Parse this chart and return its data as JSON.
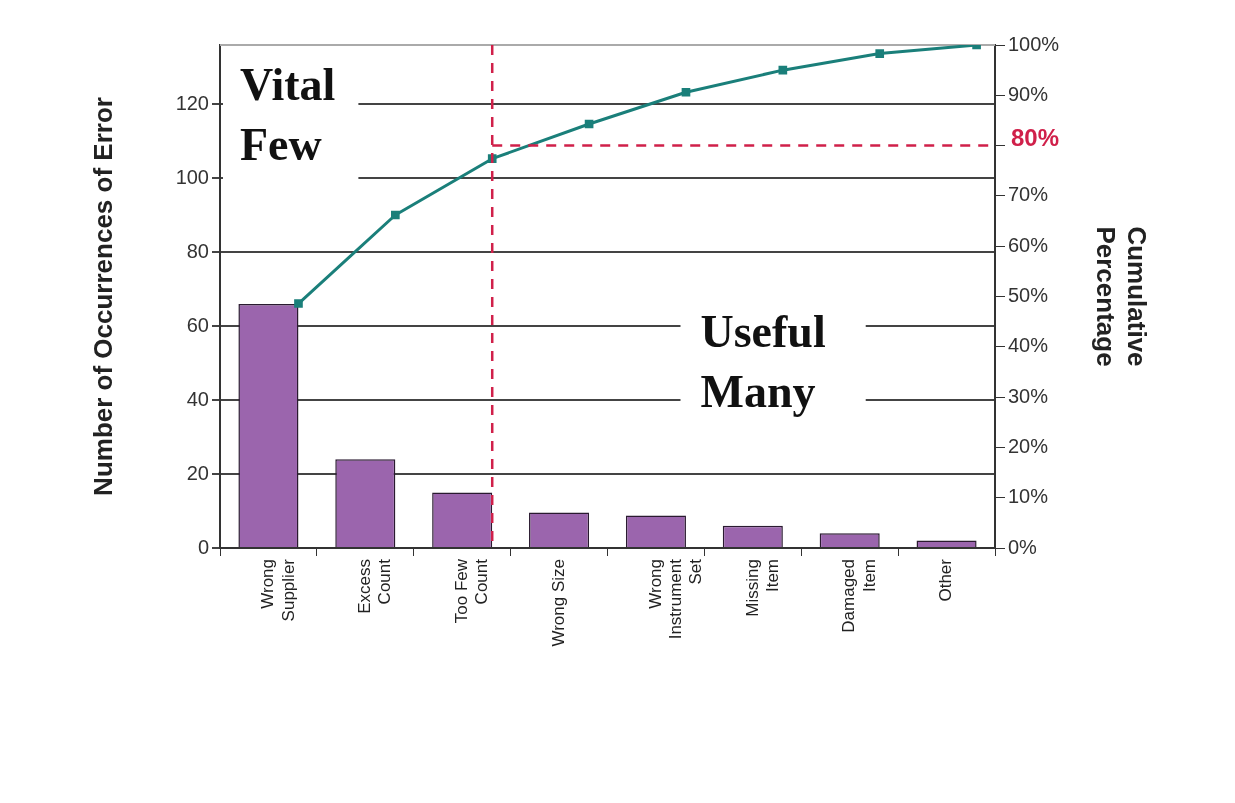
{
  "chart_data": {
    "type": "bar",
    "categories": [
      "Wrong Supplier",
      "Excess Count",
      "Too Few Count",
      "Wrong Size",
      "Wrong Instrument Set",
      "Missing Item",
      "Damaged Item",
      "Other"
    ],
    "ylabel": "Number of Occurrences of Error",
    "y2label": "Cumulative Percentage",
    "ylim": [
      0,
      136
    ],
    "yticks": [
      0,
      20,
      40,
      60,
      80,
      100,
      120
    ],
    "y2lim": [
      0,
      100
    ],
    "y2ticks": [
      {
        "value": 0,
        "label": "0%"
      },
      {
        "value": 10,
        "label": "10%"
      },
      {
        "value": 20,
        "label": "20%"
      },
      {
        "value": 30,
        "label": "30%"
      },
      {
        "value": 40,
        "label": "40%"
      },
      {
        "value": 50,
        "label": "50%"
      },
      {
        "value": 60,
        "label": "60%"
      },
      {
        "value": 70,
        "label": "70%"
      },
      {
        "value": 80,
        "label": null
      },
      {
        "value": 90,
        "label": "90%"
      },
      {
        "value": 100,
        "label": "100%"
      }
    ],
    "series": [
      {
        "color": "#9b65ad",
        "values": [
          66,
          24,
          15,
          9.6,
          8.8,
          6,
          4,
          2
        ]
      },
      {
        "type": "line",
        "axis": "y2",
        "color": "#1a7f7a",
        "values": [
          48.6,
          66.2,
          77.4,
          84.3,
          90.6,
          95.0,
          98.3,
          100
        ]
      }
    ],
    "ref_lines": [
      {
        "axis": "x",
        "value": "Too Few Count",
        "color": "#d0204a",
        "line_style": "dashed"
      },
      {
        "axis": "y2",
        "value": 80,
        "label": "80%",
        "color": "#d0204a",
        "line_style": "dashed"
      }
    ],
    "annotations": [
      "Vital Few",
      "Useful Many"
    ],
    "grid": "y",
    "legend": false,
    "marker": "square",
    "line_style": "solid"
  }
}
